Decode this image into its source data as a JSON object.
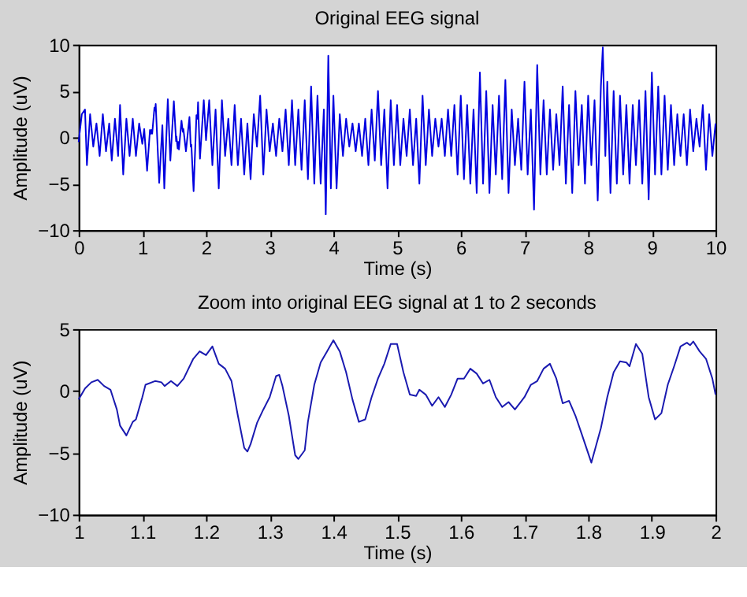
{
  "chart_data": [
    {
      "type": "line",
      "title": "Original EEG signal",
      "xlabel": "Time (s)",
      "ylabel": "Amplitude (uV)",
      "xlim": [
        0,
        10
      ],
      "ylim": [
        -10,
        10
      ],
      "xticks": [
        0,
        1,
        2,
        3,
        4,
        5,
        6,
        7,
        8,
        9,
        10
      ],
      "yticks": [
        -10,
        -5,
        0,
        5,
        10
      ],
      "series": [
        {
          "color": "#0000e0",
          "x": [
            0,
            0.05,
            0.1,
            0.13,
            0.18,
            0.23,
            0.28,
            0.33,
            0.38,
            0.43,
            0.48,
            0.52,
            0.57,
            0.62,
            0.65,
            0.7,
            0.75,
            0.8,
            0.85,
            0.9,
            0.95,
            1.0,
            1.03,
            1.075,
            1.12,
            1.135,
            1.145,
            1.155,
            1.19,
            1.2,
            1.21,
            1.265,
            1.315,
            1.345,
            1.4,
            1.44,
            1.495,
            1.53,
            1.535,
            1.555,
            1.565,
            1.575,
            1.615,
            1.635,
            1.645,
            1.685,
            1.74,
            1.76,
            1.77,
            1.805,
            1.85,
            1.865,
            1.875,
            1.905,
            1.965,
            2.0,
            2.05,
            2.1,
            2.15,
            2.2,
            2.25,
            2.3,
            2.35,
            2.4,
            2.45,
            2.5,
            2.55,
            2.6,
            2.65,
            2.7,
            2.75,
            2.8,
            2.85,
            2.9,
            2.95,
            3.0,
            3.05,
            3.1,
            3.15,
            3.2,
            3.25,
            3.3,
            3.35,
            3.4,
            3.45,
            3.5,
            3.55,
            3.6,
            3.65,
            3.7,
            3.75,
            3.8,
            3.85,
            3.88,
            3.92,
            3.96,
            4.0,
            4.05,
            4.1,
            4.15,
            4.2,
            4.25,
            4.3,
            4.35,
            4.4,
            4.45,
            4.5,
            4.55,
            4.6,
            4.65,
            4.7,
            4.75,
            4.8,
            4.85,
            4.9,
            4.95,
            5.0,
            5.05,
            5.1,
            5.15,
            5.2,
            5.25,
            5.3,
            5.35,
            5.4,
            5.45,
            5.5,
            5.55,
            5.6,
            5.65,
            5.7,
            5.75,
            5.8,
            5.85,
            5.9,
            5.95,
            6.0,
            6.05,
            6.1,
            6.15,
            6.2,
            6.25,
            6.3,
            6.35,
            6.4,
            6.45,
            6.5,
            6.55,
            6.6,
            6.65,
            6.7,
            6.75,
            6.8,
            6.85,
            6.9,
            6.95,
            7.0,
            7.05,
            7.1,
            7.15,
            7.2,
            7.25,
            7.3,
            7.35,
            7.4,
            7.45,
            7.5,
            7.55,
            7.6,
            7.65,
            7.7,
            7.75,
            7.8,
            7.85,
            7.9,
            7.95,
            8.0,
            8.05,
            8.1,
            8.15,
            8.2,
            8.23,
            8.27,
            8.3,
            8.35,
            8.4,
            8.45,
            8.5,
            8.55,
            8.6,
            8.65,
            8.7,
            8.75,
            8.8,
            8.85,
            8.9,
            8.95,
            9.0,
            9.05,
            9.1,
            9.15,
            9.2,
            9.25,
            9.3,
            9.35,
            9.4,
            9.45,
            9.5,
            9.55,
            9.6,
            9.65,
            9.7,
            9.75,
            9.8,
            9.85,
            9.9,
            9.95,
            10.0
          ],
          "values": [
            -0.5,
            2.5,
            3,
            -3,
            2.5,
            -1,
            1.5,
            -2,
            2.5,
            -1.5,
            1.5,
            -2.5,
            2,
            -2,
            3.5,
            -4,
            2,
            -2,
            2,
            -2,
            1.5,
            -0.7,
            0.9,
            -3.6,
            0.8,
            0.4,
            0.8,
            0.4,
            3.2,
            2.9,
            3.6,
            -4.9,
            1.3,
            -5.5,
            4.1,
            -2.5,
            3.9,
            -0.4,
            0.1,
            -1.2,
            -0.5,
            -1.3,
            1.8,
            0.6,
            0.9,
            -1.5,
            2.2,
            -1.0,
            -0.8,
            -5.8,
            2.4,
            2.0,
            3.8,
            -2.3,
            4.0,
            -0.3,
            4,
            -3,
            3,
            -5.5,
            4,
            -2,
            2,
            -3,
            3.5,
            -3,
            2,
            -4,
            1.5,
            -4.5,
            2.5,
            -1,
            4.5,
            -4,
            3,
            -1.5,
            1.5,
            -2,
            2,
            -1.5,
            3,
            -3,
            4,
            -3,
            3,
            -3.5,
            4,
            -4.5,
            5.5,
            -5,
            4.5,
            -5,
            3,
            -8.3,
            8.8,
            -5.5,
            4.5,
            -5.5,
            2.5,
            -2,
            2,
            -1,
            1.5,
            -1.5,
            1.5,
            -2,
            2,
            -3,
            3,
            -2.5,
            5,
            -3,
            3,
            -5.5,
            4,
            -3,
            3.5,
            -3,
            2,
            -2,
            3,
            -3,
            2,
            -5,
            4.5,
            -3,
            3,
            -2,
            2,
            -1,
            2,
            -2,
            3,
            -2,
            3.5,
            -4,
            4.5,
            -4.5,
            3.5,
            -5,
            3,
            -6,
            7,
            -5,
            5,
            -6,
            3.5,
            -4,
            4.5,
            -4.5,
            6.2,
            -6,
            3,
            -3,
            2,
            -3.5,
            6,
            -4,
            3,
            -7.8,
            7.8,
            -4,
            4,
            -4,
            3,
            -3.5,
            2.5,
            -3,
            5.5,
            -5,
            3.5,
            -6,
            5,
            -3,
            3.5,
            -5,
            4.5,
            -3,
            4,
            -6.8,
            5.5,
            9.7,
            -2,
            6,
            -6,
            5,
            -5,
            4.5,
            -4,
            3.5,
            -5,
            3.5,
            -3,
            4,
            -5,
            5,
            -6.7,
            7,
            -4,
            5.5,
            -4,
            4.5,
            -3.5,
            3.5,
            -3,
            2.5,
            -2,
            2.5,
            -3,
            3,
            -1.5,
            2,
            -1,
            3.5,
            -3.5,
            2.5,
            -2,
            1.5
          ]
        }
      ]
    },
    {
      "type": "line",
      "title": "Zoom into original EEG signal at 1 to 2 seconds",
      "xlabel": "Time (s)",
      "ylabel": "Amplitude (uV)",
      "xlim": [
        1,
        2
      ],
      "ylim": [
        -10,
        5
      ],
      "xticks": [
        1,
        1.1,
        1.2,
        1.3,
        1.4,
        1.5,
        1.6,
        1.7,
        1.8,
        1.9,
        2
      ],
      "yticks": [
        -10,
        -5,
        0,
        5
      ],
      "series": [
        {
          "color": "#1a1ab0",
          "x": [
            1.0,
            1.01,
            1.02,
            1.03,
            1.04,
            1.05,
            1.06,
            1.065,
            1.075,
            1.085,
            1.09,
            1.1,
            1.105,
            1.12,
            1.13,
            1.135,
            1.145,
            1.155,
            1.165,
            1.18,
            1.19,
            1.2,
            1.21,
            1.22,
            1.23,
            1.24,
            1.25,
            1.26,
            1.265,
            1.27,
            1.28,
            1.29,
            1.3,
            1.31,
            1.315,
            1.32,
            1.33,
            1.34,
            1.345,
            1.355,
            1.36,
            1.37,
            1.38,
            1.39,
            1.4,
            1.41,
            1.42,
            1.43,
            1.44,
            1.45,
            1.46,
            1.47,
            1.48,
            1.49,
            1.5,
            1.51,
            1.52,
            1.53,
            1.535,
            1.545,
            1.555,
            1.565,
            1.575,
            1.585,
            1.595,
            1.605,
            1.615,
            1.625,
            1.635,
            1.645,
            1.655,
            1.665,
            1.675,
            1.685,
            1.7,
            1.71,
            1.72,
            1.73,
            1.74,
            1.75,
            1.76,
            1.77,
            1.78,
            1.79,
            1.805,
            1.82,
            1.83,
            1.84,
            1.85,
            1.86,
            1.865,
            1.875,
            1.885,
            1.895,
            1.905,
            1.915,
            1.925,
            1.935,
            1.945,
            1.955,
            1.96,
            1.965,
            1.975,
            1.985,
            1.995,
            2.0
          ],
          "values": [
            -0.7,
            0.2,
            0.7,
            0.9,
            0.4,
            0.1,
            -1.5,
            -2.8,
            -3.6,
            -2.5,
            -2.3,
            -0.5,
            0.5,
            0.8,
            0.7,
            0.4,
            0.8,
            0.4,
            1.0,
            2.6,
            3.2,
            2.9,
            3.6,
            2.2,
            1.8,
            0.8,
            -2.0,
            -4.6,
            -4.9,
            -4.3,
            -2.6,
            -1.5,
            -0.5,
            1.2,
            1.3,
            0.4,
            -2.0,
            -5.2,
            -5.5,
            -4.8,
            -2.5,
            0.5,
            2.3,
            3.2,
            4.1,
            3.2,
            1.5,
            -0.7,
            -2.5,
            -2.3,
            -0.5,
            1.0,
            2.2,
            3.8,
            3.8,
            1.5,
            -0.3,
            -0.4,
            0.1,
            -0.3,
            -1.2,
            -0.5,
            -1.3,
            -0.3,
            1.0,
            1.0,
            1.8,
            1.4,
            0.6,
            0.9,
            -0.5,
            -1.3,
            -0.9,
            -1.5,
            -0.5,
            0.5,
            0.8,
            1.8,
            2.2,
            1.0,
            -1.0,
            -0.8,
            -2.0,
            -3.5,
            -5.8,
            -3.0,
            -0.5,
            1.5,
            2.4,
            2.3,
            2.0,
            3.8,
            3.0,
            -0.5,
            -2.3,
            -1.8,
            0.5,
            2.0,
            3.6,
            3.9,
            3.7,
            4.0,
            3.2,
            2.6,
            1.0,
            -0.3
          ]
        }
      ]
    }
  ]
}
